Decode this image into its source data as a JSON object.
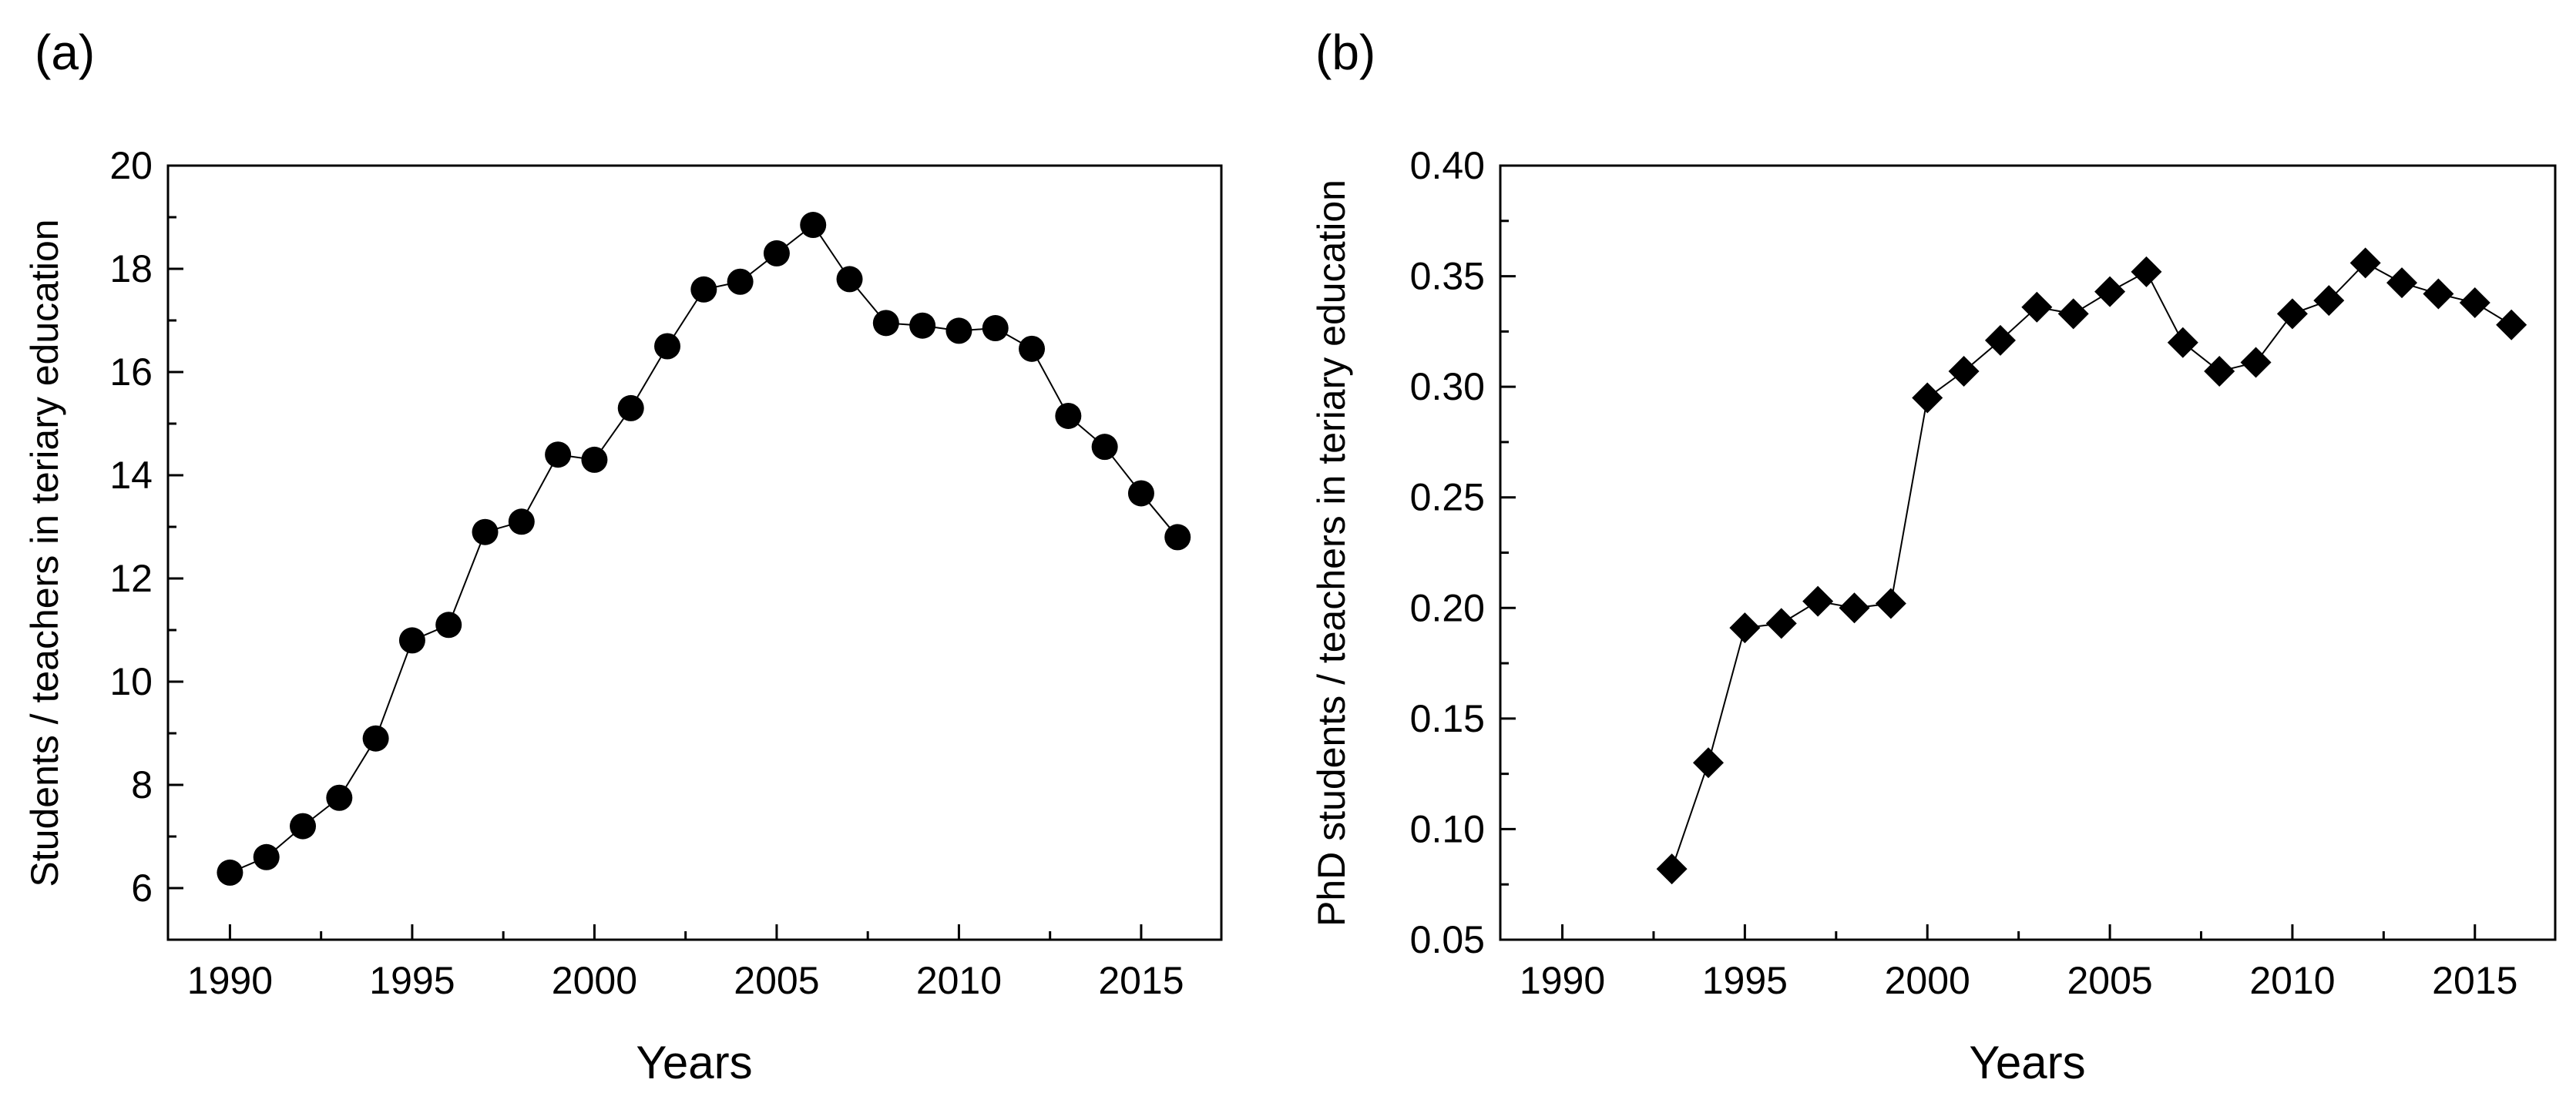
{
  "chart_data": [
    {
      "panel": "(a)",
      "type": "scatter",
      "marker": "circle",
      "connected": true,
      "xlabel": "Years",
      "ylabel": "Students / teachers in teriary education",
      "xlim": [
        1988.3,
        2017.2
      ],
      "ylim": [
        5,
        20
      ],
      "xticks": [
        1990,
        1995,
        2000,
        2005,
        2010,
        2015
      ],
      "xtick_labels": [
        "1990",
        "1995",
        "2000",
        "2005",
        "2010",
        "2015"
      ],
      "yticks": [
        6,
        8,
        10,
        12,
        14,
        16,
        18,
        20
      ],
      "ytick_labels": [
        "6",
        "8",
        "10",
        "12",
        "14",
        "16",
        "18",
        "20"
      ],
      "series": [
        {
          "name": "Students / teachers",
          "x": [
            1990,
            1991,
            1992,
            1993,
            1994,
            1995,
            1996,
            1997,
            1998,
            1999,
            2000,
            2001,
            2002,
            2003,
            2004,
            2005,
            2006,
            2007,
            2008,
            2009,
            2010,
            2011,
            2012,
            2013,
            2014,
            2015,
            2016
          ],
          "y": [
            6.3,
            6.6,
            7.2,
            7.75,
            8.9,
            10.8,
            11.1,
            12.9,
            13.1,
            14.4,
            14.3,
            15.3,
            16.5,
            17.6,
            17.75,
            18.3,
            18.85,
            17.8,
            16.95,
            16.9,
            16.8,
            16.85,
            16.45,
            15.15,
            14.55,
            13.65,
            12.8
          ]
        }
      ]
    },
    {
      "panel": "(b)",
      "type": "scatter",
      "marker": "diamond",
      "connected": true,
      "xlabel": "Years",
      "ylabel": "PhD students / teachers in teriary education",
      "xlim": [
        1988.3,
        2017.2
      ],
      "ylim": [
        0.05,
        0.4
      ],
      "xticks": [
        1990,
        1995,
        2000,
        2005,
        2010,
        2015
      ],
      "xtick_labels": [
        "1990",
        "1995",
        "2000",
        "2005",
        "2010",
        "2015"
      ],
      "yticks": [
        0.05,
        0.1,
        0.15,
        0.2,
        0.25,
        0.3,
        0.35,
        0.4
      ],
      "ytick_labels": [
        "0.05",
        "0.10",
        "0.15",
        "0.20",
        "0.25",
        "0.30",
        "0.35",
        "0.40"
      ],
      "series": [
        {
          "name": "PhD students / teachers",
          "x": [
            1993,
            1994,
            1995,
            1996,
            1997,
            1998,
            1999,
            2000,
            2001,
            2002,
            2003,
            2004,
            2005,
            2006,
            2007,
            2008,
            2009,
            2010,
            2011,
            2012,
            2013,
            2014,
            2015,
            2016
          ],
          "y": [
            0.082,
            0.13,
            0.191,
            0.193,
            0.203,
            0.2,
            0.202,
            0.295,
            0.307,
            0.321,
            0.336,
            0.333,
            0.343,
            0.352,
            0.32,
            0.307,
            0.311,
            0.333,
            0.339,
            0.356,
            0.347,
            0.342,
            0.338,
            0.328
          ]
        }
      ]
    }
  ]
}
